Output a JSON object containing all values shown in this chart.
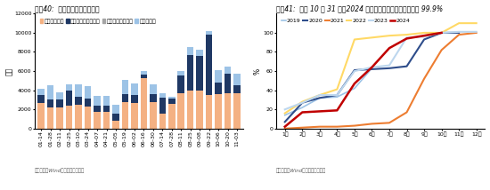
{
  "chart1": {
    "title": "图表40:  近半月利率债发行情况",
    "ylabel": "亿元",
    "legend": [
      "国债（亿元）",
      "地方政府债（亿元）",
      "央行票据（亿元）",
      "政策银行债"
    ],
    "colors": [
      "#F4B183",
      "#1F3864",
      "#A5A5A5",
      "#9DC3E6"
    ],
    "xlabels": [
      "01-14",
      "01-28",
      "02-11",
      "02-25",
      "03-10",
      "03-24",
      "04-07",
      "04-21",
      "05-05",
      "05-19",
      "06-02",
      "06-16",
      "06-30",
      "07-14",
      "07-28",
      "08-11",
      "08-25",
      "09-08",
      "09-22",
      "10-06",
      "10-20",
      "11-03"
    ],
    "data": {
      "国债": [
        2700,
        2200,
        2200,
        2400,
        2500,
        2300,
        1700,
        1700,
        800,
        2800,
        2700,
        5300,
        2800,
        1600,
        2600,
        3700,
        4000,
        4000,
        3500,
        3600,
        3700,
        3700
      ],
      "地方政府债": [
        800,
        800,
        800,
        1600,
        800,
        800,
        700,
        700,
        800,
        800,
        800,
        300,
        800,
        1600,
        500,
        1800,
        3700,
        3600,
        6300,
        1200,
        2000,
        800
      ],
      "央行票据": [
        0,
        0,
        0,
        0,
        0,
        0,
        0,
        0,
        0,
        0,
        0,
        0,
        0,
        0,
        0,
        0,
        0,
        0,
        0,
        0,
        0,
        0
      ],
      "政策银行债": [
        700,
        1500,
        800,
        600,
        1300,
        1300,
        1000,
        1000,
        900,
        1500,
        1200,
        400,
        1000,
        500,
        200,
        500,
        800,
        600,
        400,
        1300,
        800,
        1200
      ]
    },
    "ylim": [
      0,
      12000
    ],
    "yticks": [
      0,
      2000,
      4000,
      6000,
      8000,
      10000,
      12000
    ],
    "source": "资料来源：Wind，国盛证券研究所"
  },
  "chart2": {
    "title": "图表41:  截至 10 月 31 日，2024 年地方政府专项债发行进度约 99.9%",
    "ylabel": "%",
    "legend": [
      "2019",
      "2020",
      "2021",
      "2022",
      "2023",
      "2024"
    ],
    "colors": [
      "#9DC3E6",
      "#2E4D8B",
      "#ED7D31",
      "#FFD966",
      "#BDD7EE",
      "#C00000"
    ],
    "xlabels": [
      "1月",
      "2月",
      "3月",
      "4月",
      "5月",
      "6月",
      "7月",
      "8月",
      "9月",
      "10月",
      "11月",
      "12月"
    ],
    "data": {
      "2019": [
        14,
        22,
        32,
        33,
        42,
        63,
        null,
        null,
        null,
        null,
        null,
        null
      ],
      "2020": [
        7,
        27,
        32,
        35,
        61,
        62,
        63,
        65,
        93,
        100,
        100,
        null
      ],
      "2021": [
        0,
        1,
        2,
        2,
        3,
        5,
        6,
        17,
        52,
        82,
        98,
        100
      ],
      "2022": [
        16,
        28,
        35,
        41,
        93,
        95,
        97,
        98,
        100,
        100,
        110,
        110
      ],
      "2023": [
        20,
        27,
        35,
        35,
        60,
        64,
        66,
        95,
        96,
        100,
        101,
        101
      ],
      "2024": [
        2,
        17,
        18,
        19,
        47,
        64,
        84,
        94,
        97,
        100,
        null,
        null
      ]
    },
    "ylim": [
      0,
      120
    ],
    "yticks": [
      0,
      20,
      40,
      60,
      80,
      100
    ],
    "source": "资料来源：Wind，国盛证券研究所"
  },
  "fig_title_fontsize": 5.5,
  "axis_fontsize": 5.5,
  "tick_fontsize": 4.5,
  "legend_fontsize": 4.5,
  "source_fontsize": 4.0
}
